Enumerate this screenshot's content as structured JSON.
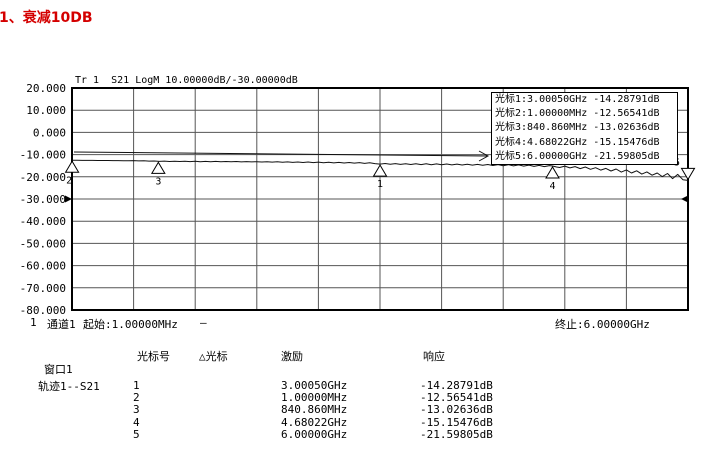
{
  "page": {
    "title": "1、衰减10DB"
  },
  "colors": {
    "title_red": "#d40000",
    "grid_line": "#555555",
    "plot_border": "#000000",
    "trace": "#111111",
    "background": "#ffffff"
  },
  "status_bar": {
    "channel_num": "1",
    "channel": "通道1",
    "start": "起始:1.00000MHz",
    "indicator": "—",
    "stop": "终止:6.00000GHz"
  },
  "marker_table": {
    "window_label": "窗口1",
    "trace_label": "轨迹1--S21",
    "headers": {
      "num": "光标号",
      "delta": "△光标",
      "stimulus": "激励",
      "response": "响应"
    }
  },
  "chart_data": {
    "type": "line",
    "header": "Tr 1  S21 LogM 10.00000dB/-30.00000dB",
    "trace_name": "S21",
    "format": "LogM",
    "scale_per_div_db": 10.0,
    "ref_level_db": -30.0,
    "xlim_ghz": [
      1e-06,
      6.0
    ],
    "ylim_db": [
      -80,
      20
    ],
    "x_divisions": 10,
    "grid": true,
    "y_tick_labels": [
      "20.000",
      "10.000",
      "0.000",
      "-10.000",
      "-20.000",
      "-30.000",
      "-40.000",
      "-50.000",
      "-60.000",
      "-70.000",
      "-80.000"
    ],
    "marker_prefix": "光标",
    "active_marker": "5",
    "markers": [
      {
        "num": "1",
        "freq_ghz": 3.0005,
        "stimulus": "3.00050GHz",
        "response_db": -14.28791,
        "response": "-14.28791dB"
      },
      {
        "num": "2",
        "freq_ghz": 0.001,
        "stimulus": "1.00000MHz",
        "response_db": -12.56541,
        "response": "-12.56541dB"
      },
      {
        "num": "3",
        "freq_ghz": 0.84086,
        "stimulus": "840.860MHz",
        "response_db": -13.02636,
        "response": "-13.02636dB"
      },
      {
        "num": "4",
        "freq_ghz": 4.68022,
        "stimulus": "4.68022GHz",
        "response_db": -15.15476,
        "response": "-15.15476dB"
      },
      {
        "num": "5",
        "freq_ghz": 6.0,
        "stimulus": "6.00000GHz",
        "response_db": -21.59805,
        "response": "-21.59805dB"
      }
    ],
    "series": [
      {
        "name": "S21",
        "points": [
          [
            0.001,
            -12.57
          ],
          [
            0.05,
            -12.58
          ],
          [
            0.1,
            -12.6
          ],
          [
            0.15,
            -12.61
          ],
          [
            0.2,
            -12.63
          ],
          [
            0.25,
            -12.65
          ],
          [
            0.3,
            -12.66
          ],
          [
            0.35,
            -12.68
          ],
          [
            0.4,
            -12.7
          ],
          [
            0.45,
            -12.72
          ],
          [
            0.5,
            -12.73
          ],
          [
            0.55,
            -12.8
          ],
          [
            0.6,
            -12.7
          ],
          [
            0.65,
            -12.85
          ],
          [
            0.7,
            -12.78
          ],
          [
            0.75,
            -12.95
          ],
          [
            0.8,
            -12.88
          ],
          [
            0.85,
            -13.05
          ],
          [
            0.9,
            -12.92
          ],
          [
            0.95,
            -13.1
          ],
          [
            1.0,
            -12.98
          ],
          [
            1.05,
            -13.12
          ],
          [
            1.1,
            -13.0
          ],
          [
            1.15,
            -13.15
          ],
          [
            1.2,
            -13.02
          ],
          [
            1.25,
            -13.18
          ],
          [
            1.3,
            -13.05
          ],
          [
            1.35,
            -13.2
          ],
          [
            1.4,
            -13.08
          ],
          [
            1.45,
            -13.22
          ],
          [
            1.5,
            -13.1
          ],
          [
            1.55,
            -13.25
          ],
          [
            1.6,
            -13.12
          ],
          [
            1.65,
            -13.28
          ],
          [
            1.7,
            -13.15
          ],
          [
            1.75,
            -13.3
          ],
          [
            1.8,
            -13.18
          ],
          [
            1.85,
            -13.35
          ],
          [
            1.9,
            -13.2
          ],
          [
            1.95,
            -13.38
          ],
          [
            2.0,
            -13.25
          ],
          [
            2.05,
            -13.45
          ],
          [
            2.1,
            -13.28
          ],
          [
            2.15,
            -13.5
          ],
          [
            2.2,
            -13.32
          ],
          [
            2.25,
            -13.55
          ],
          [
            2.3,
            -13.35
          ],
          [
            2.35,
            -13.6
          ],
          [
            2.4,
            -13.4
          ],
          [
            2.45,
            -13.68
          ],
          [
            2.5,
            -13.45
          ],
          [
            2.55,
            -13.72
          ],
          [
            2.6,
            -13.5
          ],
          [
            2.65,
            -13.8
          ],
          [
            2.7,
            -13.55
          ],
          [
            2.75,
            -13.85
          ],
          [
            2.8,
            -13.62
          ],
          [
            2.85,
            -13.95
          ],
          [
            2.9,
            -13.7
          ],
          [
            2.95,
            -14.05
          ],
          [
            3.0,
            -14.29
          ],
          [
            3.05,
            -14.0
          ],
          [
            3.1,
            -14.35
          ],
          [
            3.15,
            -14.05
          ],
          [
            3.2,
            -14.4
          ],
          [
            3.25,
            -14.1
          ],
          [
            3.3,
            -14.45
          ],
          [
            3.35,
            -14.12
          ],
          [
            3.4,
            -14.5
          ],
          [
            3.45,
            -14.15
          ],
          [
            3.5,
            -14.55
          ],
          [
            3.55,
            -14.2
          ],
          [
            3.6,
            -14.6
          ],
          [
            3.65,
            -14.25
          ],
          [
            3.7,
            -14.65
          ],
          [
            3.75,
            -14.3
          ],
          [
            3.8,
            -14.7
          ],
          [
            3.85,
            -14.35
          ],
          [
            3.9,
            -14.75
          ],
          [
            3.95,
            -14.4
          ],
          [
            4.0,
            -14.8
          ],
          [
            4.05,
            -14.45
          ],
          [
            4.1,
            -14.9
          ],
          [
            4.15,
            -14.5
          ],
          [
            4.2,
            -15.0
          ],
          [
            4.25,
            -14.55
          ],
          [
            4.3,
            -15.1
          ],
          [
            4.35,
            -14.65
          ],
          [
            4.4,
            -15.2
          ],
          [
            4.45,
            -14.75
          ],
          [
            4.5,
            -15.3
          ],
          [
            4.55,
            -14.85
          ],
          [
            4.6,
            -15.4
          ],
          [
            4.65,
            -14.95
          ],
          [
            4.68,
            -15.15
          ],
          [
            4.72,
            -15.6
          ],
          [
            4.75,
            -15.8
          ],
          [
            4.8,
            -15.2
          ],
          [
            4.85,
            -16.0
          ],
          [
            4.9,
            -15.4
          ],
          [
            4.95,
            -16.3
          ],
          [
            5.0,
            -15.6
          ],
          [
            5.05,
            -16.6
          ],
          [
            5.1,
            -15.9
          ],
          [
            5.15,
            -17.0
          ],
          [
            5.2,
            -16.2
          ],
          [
            5.25,
            -17.4
          ],
          [
            5.3,
            -16.5
          ],
          [
            5.35,
            -17.9
          ],
          [
            5.4,
            -16.9
          ],
          [
            5.45,
            -18.3
          ],
          [
            5.5,
            -17.3
          ],
          [
            5.55,
            -18.8
          ],
          [
            5.6,
            -17.8
          ],
          [
            5.65,
            -19.3
          ],
          [
            5.7,
            -18.3
          ],
          [
            5.75,
            -19.9
          ],
          [
            5.8,
            -18.5
          ],
          [
            5.85,
            -20.8
          ],
          [
            5.9,
            -18.9
          ],
          [
            5.95,
            -21.3
          ],
          [
            6.0,
            -21.6
          ]
        ]
      }
    ]
  }
}
